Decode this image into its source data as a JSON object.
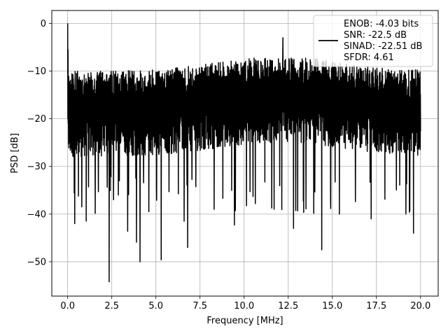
{
  "chart_data": {
    "type": "line",
    "title": "",
    "xlabel": "Frequency [MHz]",
    "ylabel": "PSD [dB]",
    "xlim": [
      -0.9,
      21.0
    ],
    "ylim": [
      -57.2,
      2.7
    ],
    "xticks": [
      0.0,
      2.5,
      5.0,
      7.5,
      10.0,
      12.5,
      15.0,
      17.5,
      20.0
    ],
    "xtick_labels": [
      "0.0",
      "2.5",
      "5.0",
      "7.5",
      "10.0",
      "12.5",
      "15.0",
      "17.5",
      "20.0"
    ],
    "yticks": [
      0,
      -10,
      -20,
      -30,
      -40,
      -50
    ],
    "ytick_labels": [
      "0",
      "−10",
      "−20",
      "−30",
      "−40",
      "−50"
    ],
    "grid": true,
    "legend_position": "top-right",
    "legend_lines": [
      "ENOB: -4.03 bits",
      "SNR: -22.5 dB",
      "SINAD: -22.51 dB",
      "SFDR: 4.61"
    ],
    "series_color": "#000000",
    "series": [
      {
        "x_start": 0.0,
        "x_end": 20.0,
        "approx_points": 2000,
        "typical_range_db": [
          -28,
          -10
        ],
        "peak_db": 0.0,
        "features": [
          {
            "x": 0.0,
            "y": 0.0
          },
          {
            "x": 0.02,
            "y": -5.5
          },
          {
            "x": 0.4,
            "y": -42.0
          },
          {
            "x": 0.8,
            "y": -38.5
          },
          {
            "x": 1.05,
            "y": -41.5
          },
          {
            "x": 2.35,
            "y": -54.2
          },
          {
            "x": 2.6,
            "y": -37.0
          },
          {
            "x": 3.4,
            "y": -43.6
          },
          {
            "x": 3.9,
            "y": -45.9
          },
          {
            "x": 4.1,
            "y": -50.0
          },
          {
            "x": 4.6,
            "y": -39.5
          },
          {
            "x": 5.3,
            "y": -49.6
          },
          {
            "x": 6.6,
            "y": -41.5
          },
          {
            "x": 6.8,
            "y": -47.0
          },
          {
            "x": 8.3,
            "y": -39.0
          },
          {
            "x": 9.45,
            "y": -42.3
          },
          {
            "x": 11.7,
            "y": -39.0
          },
          {
            "x": 12.2,
            "y": -3.0
          },
          {
            "x": 12.8,
            "y": -43.0
          },
          {
            "x": 14.4,
            "y": -47.5
          },
          {
            "x": 14.9,
            "y": -37.0
          },
          {
            "x": 15.4,
            "y": -40.0
          },
          {
            "x": 17.2,
            "y": -41.0
          },
          {
            "x": 19.6,
            "y": -44.0
          }
        ]
      }
    ]
  }
}
